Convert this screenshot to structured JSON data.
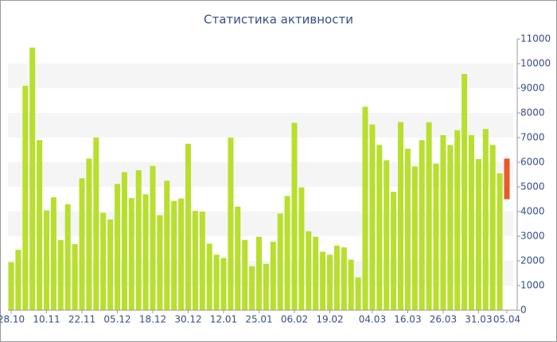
{
  "chart_data": {
    "type": "bar",
    "title": "Статистика активности",
    "categories": [
      "28.10",
      null,
      null,
      null,
      null,
      "10.11",
      null,
      null,
      null,
      null,
      "22.11",
      null,
      null,
      null,
      null,
      "05.12",
      null,
      null,
      null,
      null,
      "18.12",
      null,
      null,
      null,
      null,
      "30.12",
      null,
      null,
      null,
      null,
      "12.01",
      null,
      null,
      null,
      null,
      "25.01",
      null,
      null,
      null,
      null,
      "06.02",
      null,
      null,
      null,
      null,
      "19.02",
      null,
      null,
      null,
      null,
      null,
      "04.03",
      null,
      null,
      null,
      null,
      "16.03",
      null,
      null,
      null,
      null,
      "26.03",
      null,
      null,
      null,
      null,
      "31.03",
      null,
      null,
      null,
      "05.04"
    ],
    "values": [
      1950,
      2450,
      9100,
      10650,
      6900,
      4050,
      4580,
      2850,
      4300,
      2680,
      5350,
      6150,
      7000,
      3950,
      3680,
      5120,
      5600,
      4550,
      5680,
      4700,
      5850,
      3850,
      5250,
      4430,
      4530,
      6750,
      4030,
      4000,
      2700,
      2250,
      2120,
      7000,
      4200,
      2850,
      1780,
      2980,
      1880,
      2780,
      3920,
      4630,
      7600,
      4980,
      3200,
      2980,
      2370,
      2250,
      2620,
      2550,
      2050,
      1330,
      8250,
      7530,
      6700,
      6080,
      4800,
      7630,
      6550,
      5830,
      6900,
      7620,
      5940,
      7100,
      6700,
      7300,
      9580,
      7100,
      6130,
      7350,
      6700,
      5550,
      null
    ],
    "color": "#b8df2d",
    "range_bar": {
      "index": 70,
      "values": [
        4500,
        6150
      ],
      "color": "#e85a2a"
    },
    "ylim": [
      0,
      11000
    ],
    "yticks": [
      0,
      1000,
      2000,
      3000,
      4000,
      5000,
      6000,
      7000,
      8000,
      9000,
      10000,
      11000
    ],
    "stripes": true
  }
}
